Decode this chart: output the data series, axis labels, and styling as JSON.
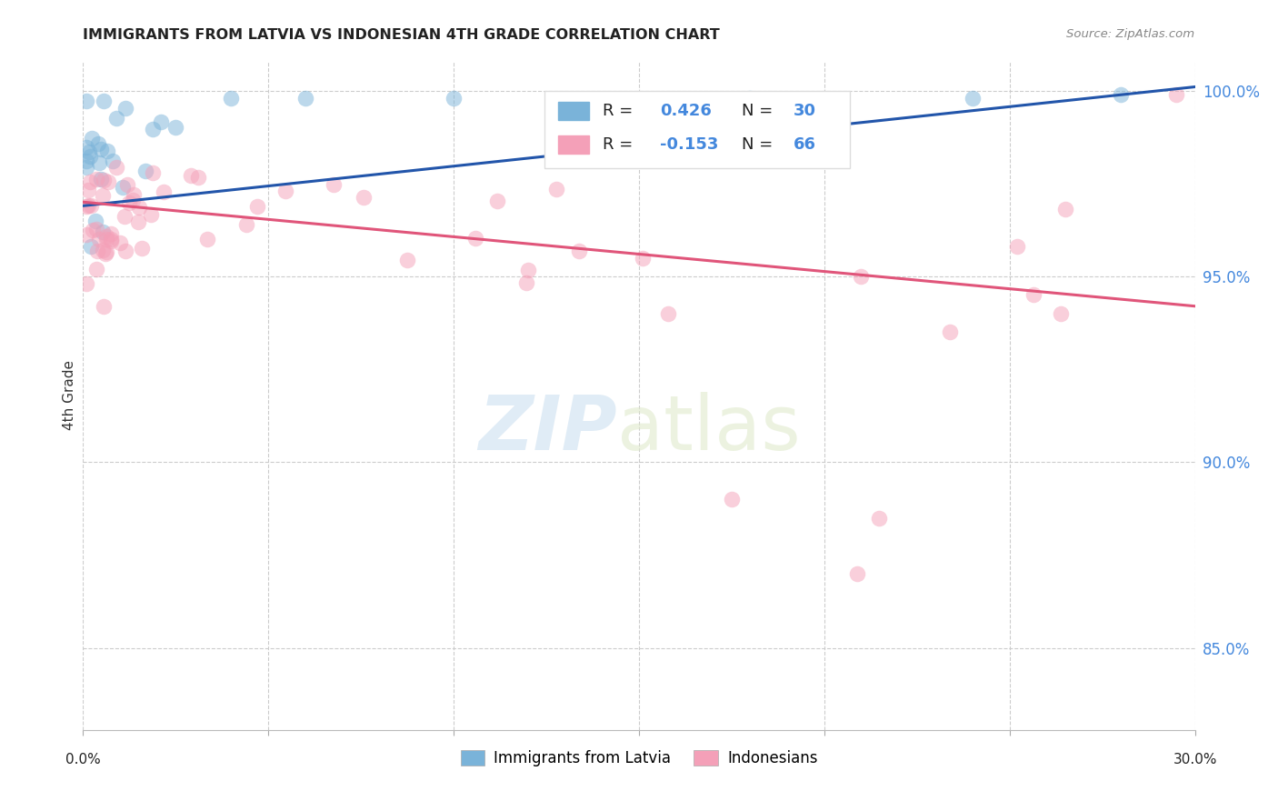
{
  "title": "IMMIGRANTS FROM LATVIA VS INDONESIAN 4TH GRADE CORRELATION CHART",
  "source": "Source: ZipAtlas.com",
  "ylabel": "4th Grade",
  "xmin": 0.0,
  "xmax": 0.3,
  "ymin": 0.828,
  "ymax": 1.008,
  "yticks": [
    0.85,
    0.9,
    0.95,
    1.0
  ],
  "ytick_labels": [
    "85.0%",
    "90.0%",
    "95.0%",
    "100.0%"
  ],
  "blue_color": "#7ab3d9",
  "pink_color": "#f4a0b8",
  "blue_line_color": "#2255aa",
  "pink_line_color": "#e0557a",
  "watermark_ZIP": "ZIP",
  "watermark_atlas": "atlas",
  "legend_label_blue": "Immigrants from Latvia",
  "legend_label_pink": "Indonesians",
  "blue_trend_x0": 0.0,
  "blue_trend_y0": 0.969,
  "blue_trend_x1": 0.3,
  "blue_trend_y1": 1.001,
  "pink_trend_x0": 0.0,
  "pink_trend_y0": 0.97,
  "pink_trend_x1": 0.3,
  "pink_trend_y1": 0.942
}
